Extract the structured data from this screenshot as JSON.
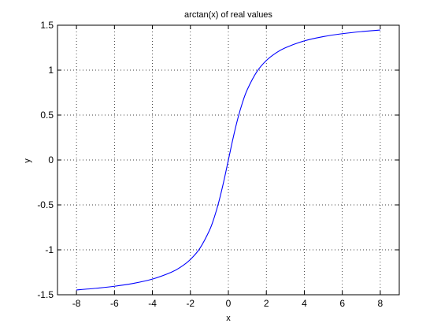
{
  "chart_data": {
    "type": "line",
    "title": "arctan(x) of real values",
    "xlabel": "x",
    "ylabel": "y",
    "xlim": [
      -9,
      9
    ],
    "ylim": [
      -1.5,
      1.5
    ],
    "xticks": [
      -8,
      -6,
      -4,
      -2,
      0,
      2,
      4,
      6,
      8
    ],
    "yticks": [
      -1.5,
      -1,
      -0.5,
      0,
      0.5,
      1,
      1.5
    ],
    "xtick_labels": [
      "-8",
      "-6",
      "-4",
      "-2",
      "0",
      "2",
      "4",
      "6",
      "8"
    ],
    "ytick_labels": [
      "-1.5",
      "-1",
      "-0.5",
      "0",
      "0.5",
      "1",
      "1.5"
    ],
    "grid": true,
    "series": [
      {
        "color": "#0000ff",
        "x": [
          -8,
          -7,
          -6,
          -5,
          -4,
          -3,
          -2.5,
          -2,
          -1.5,
          -1,
          -0.75,
          -0.5,
          -0.25,
          0,
          0.25,
          0.5,
          0.75,
          1,
          1.5,
          2,
          2.5,
          3,
          4,
          5,
          6,
          7,
          8
        ],
        "y": [
          -1.4464,
          -1.4289,
          -1.4056,
          -1.3734,
          -1.3258,
          -1.249,
          -1.1903,
          -1.1071,
          -0.9828,
          -0.7854,
          -0.6435,
          -0.4636,
          -0.245,
          0,
          0.245,
          0.4636,
          0.6435,
          0.7854,
          0.9828,
          1.1071,
          1.1903,
          1.249,
          1.3258,
          1.3734,
          1.4056,
          1.4289,
          1.4464
        ]
      }
    ]
  }
}
